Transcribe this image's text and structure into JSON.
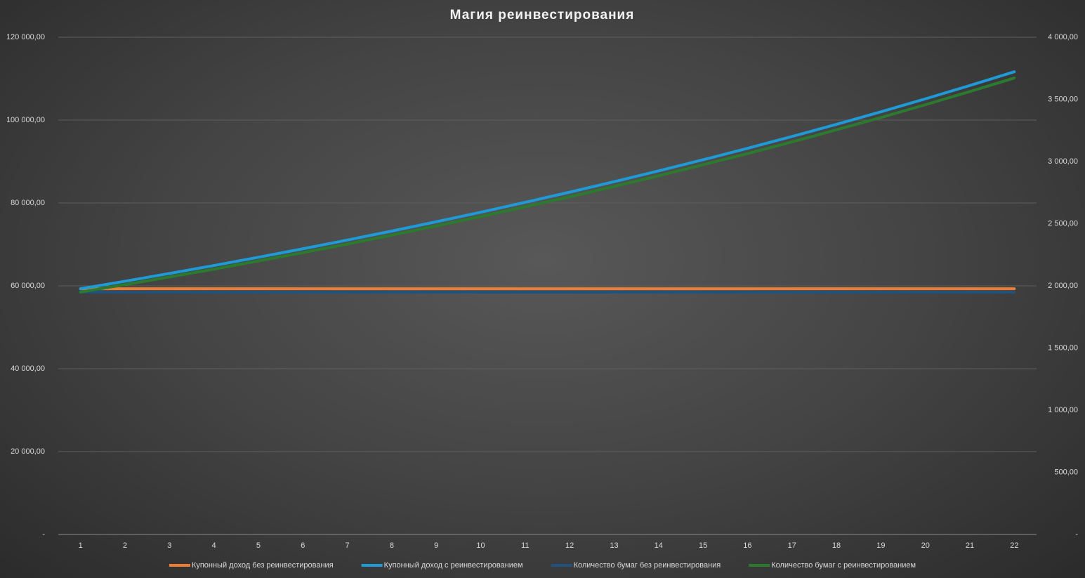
{
  "chart_data": {
    "type": "line",
    "title": "Магия реинвестирования",
    "categories": [
      "1",
      "2",
      "3",
      "4",
      "5",
      "6",
      "7",
      "8",
      "9",
      "10",
      "11",
      "12",
      "13",
      "14",
      "15",
      "16",
      "17",
      "18",
      "19",
      "20",
      "21",
      "22"
    ],
    "series": [
      {
        "name": "Купонный доход без реинвестирования",
        "color": "#ed7d31",
        "values": [
          59300,
          59300,
          59300,
          59300,
          59300,
          59300,
          59300,
          59300,
          59300,
          59300,
          59300,
          59300,
          59300,
          59300,
          59300,
          59300,
          59300,
          59300,
          59300,
          59300,
          59300,
          59300
        ]
      },
      {
        "name": "Купонный доход с реинвестированием",
        "color": "#1e9ad6",
        "values": [
          59300,
          61115,
          62983,
          64910,
          66896,
          68942,
          71053,
          73224,
          75465,
          77772,
          80156,
          82605,
          85137,
          87740,
          90427,
          93190,
          96042,
          98978,
          102008,
          105127,
          108347,
          111662
        ]
      },
      {
        "name": "Количество бумаг без реинвестирования",
        "color": "#23517e",
        "axis": "y2",
        "values": [
          1950,
          1950,
          1950,
          1950,
          1950,
          1950,
          1950,
          1950,
          1950,
          1950,
          1950,
          1950,
          1950,
          1950,
          1950,
          1950,
          1950,
          1950,
          1950,
          1950,
          1950,
          1950
        ]
      },
      {
        "name": "Количество бумаг с реинвестированием",
        "color": "#2b7a2e",
        "axis": "y2",
        "values": [
          1950,
          2010,
          2071,
          2134,
          2200,
          2267,
          2336,
          2408,
          2482,
          2557,
          2636,
          2716,
          2800,
          2885,
          2974,
          3064,
          3158,
          3255,
          3354,
          3457,
          3563,
          3672
        ]
      }
    ],
    "ylim": [
      0,
      120000
    ],
    "yticks": [
      {
        "value": 0,
        "label": "-"
      },
      {
        "value": 20000,
        "label": "20 000,00"
      },
      {
        "value": 40000,
        "label": "40 000,00"
      },
      {
        "value": 60000,
        "label": "60 000,00"
      },
      {
        "value": 80000,
        "label": "80 000,00"
      },
      {
        "value": 100000,
        "label": "100 000,00"
      },
      {
        "value": 120000,
        "label": "120 000,00"
      }
    ],
    "y2lim": [
      0,
      4000
    ],
    "y2ticks": [
      {
        "value": 0,
        "label": "-"
      },
      {
        "value": 500,
        "label": "500,00"
      },
      {
        "value": 1000,
        "label": "1 000,00"
      },
      {
        "value": 1500,
        "label": "1 500,00"
      },
      {
        "value": 2000,
        "label": "2 000,00"
      },
      {
        "value": 2500,
        "label": "2 500,00"
      },
      {
        "value": 3000,
        "label": "3 000,00"
      },
      {
        "value": 3500,
        "label": "3 500,00"
      },
      {
        "value": 4000,
        "label": "4 000,00"
      }
    ],
    "grid": true,
    "legend": "bottom"
  }
}
